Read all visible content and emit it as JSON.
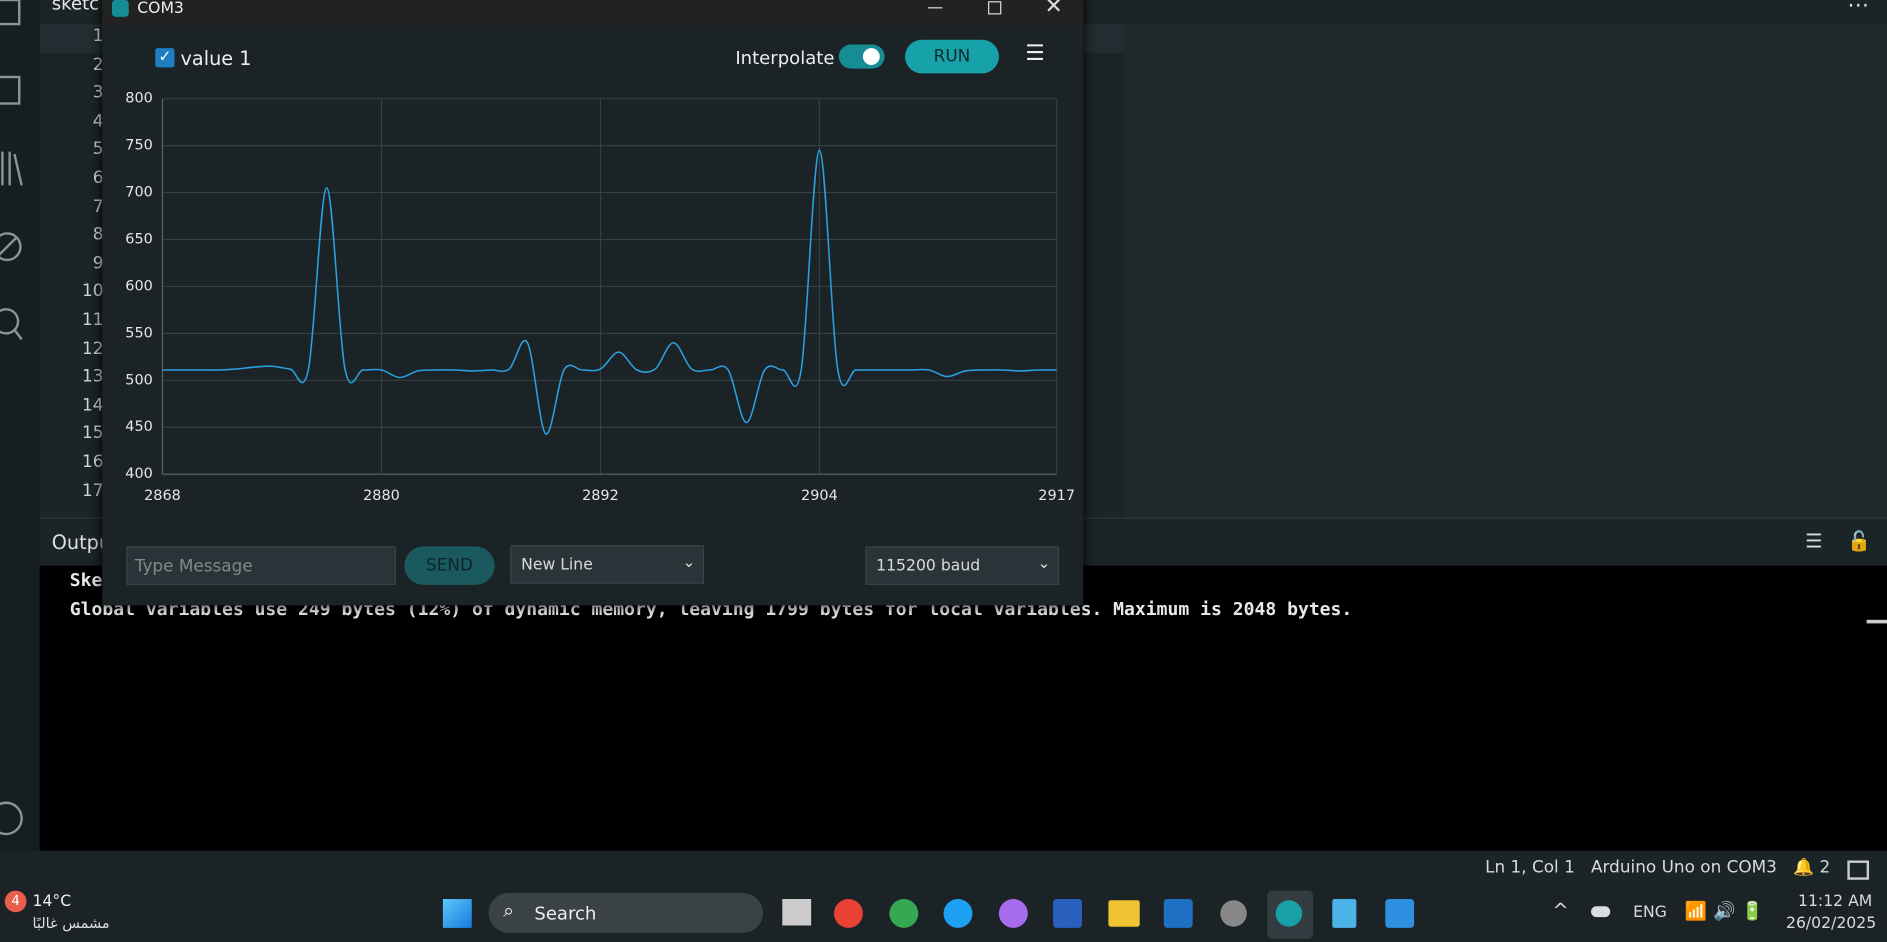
{
  "ide": {
    "tab": "sketc",
    "line_numbers": [
      "1",
      "2",
      "3",
      "4",
      "5",
      "6",
      "7",
      "8",
      "9",
      "10",
      "11",
      "12",
      "13",
      "14",
      "15",
      "16",
      "17"
    ],
    "output_label": "Outpu",
    "output_lines": [
      "Ske",
      "Global variables use 249 bytes (12%) of dynamic memory, leaving 1799 bytes for local variables. Maximum is 2048 bytes."
    ],
    "status": {
      "position": "Ln 1, Col 1",
      "board": "Arduino Uno on COM3",
      "notifications": "2"
    }
  },
  "window": {
    "title": "COM3",
    "interpolate_label": "Interpolate",
    "run": "RUN",
    "message_placeholder": "Type Message",
    "send": "SEND",
    "line_ending": "New Line",
    "baud": "115200 baud"
  },
  "chart_data": {
    "type": "line",
    "x": [
      2868,
      2869,
      2870,
      2871,
      2872,
      2873,
      2874,
      2875,
      2876,
      2877,
      2878,
      2879,
      2880,
      2881,
      2882,
      2883,
      2884,
      2885,
      2886,
      2887,
      2888,
      2889,
      2890,
      2891,
      2892,
      2893,
      2894,
      2895,
      2896,
      2897,
      2898,
      2899,
      2900,
      2901,
      2902,
      2903,
      2904,
      2905,
      2906,
      2907,
      2908,
      2909,
      2910,
      2911,
      2912,
      2913,
      2914,
      2915,
      2916,
      2917
    ],
    "series": [
      {
        "name": "value 1",
        "color": "#2b9fe0",
        "values": [
          511,
          511,
          511,
          511,
          512,
          514,
          515,
          512,
          512,
          705,
          512,
          511,
          511,
          503,
          510,
          511,
          511,
          510,
          511,
          512,
          540,
          443,
          511,
          511,
          512,
          530,
          511,
          512,
          540,
          512,
          511,
          511,
          455,
          511,
          511,
          511,
          745,
          512,
          511,
          511,
          511,
          511,
          511,
          504,
          510,
          511,
          511,
          510,
          511,
          511
        ]
      }
    ],
    "xlim": [
      2868,
      2917
    ],
    "xticks": [
      2868,
      2880,
      2892,
      2904,
      2917
    ],
    "ylim": [
      400,
      800
    ],
    "yticks": [
      400,
      450,
      500,
      550,
      600,
      650,
      700,
      750,
      800
    ],
    "grid": true,
    "interpolate": true
  },
  "taskbar": {
    "weather_badge": "4",
    "temperature": "14°C",
    "weather": "مشمس غالبًا",
    "search": "Search",
    "language": "ENG",
    "time": "11:12 AM",
    "date": "26/02/2025"
  }
}
